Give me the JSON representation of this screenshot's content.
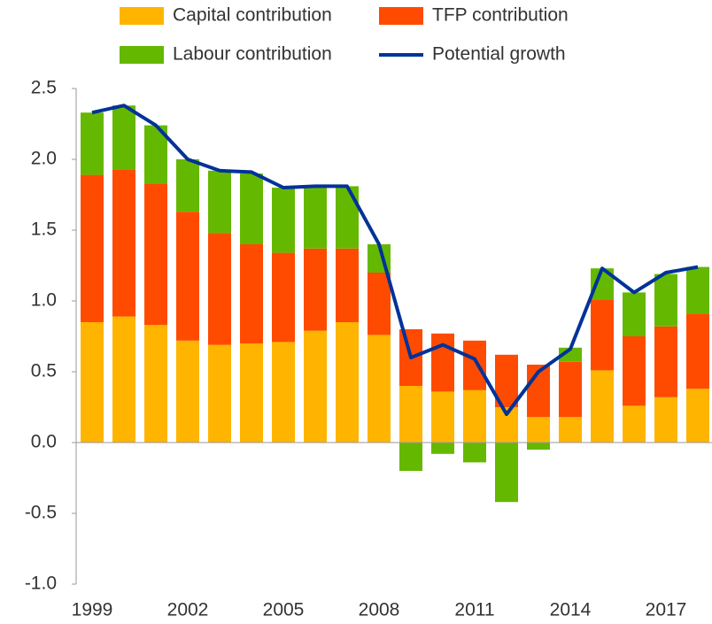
{
  "chart_data": {
    "type": "bar",
    "stacked": true,
    "categories": [
      "1999",
      null,
      null,
      "2002",
      null,
      null,
      "2005",
      null,
      null,
      "2008",
      null,
      null,
      "2011",
      null,
      null,
      "2014",
      null,
      null,
      "2017",
      null
    ],
    "series": [
      {
        "name": "Capital contribution",
        "color": "#FFB400",
        "type": "bar",
        "values": [
          0.85,
          0.89,
          0.83,
          0.72,
          0.69,
          0.7,
          0.71,
          0.79,
          0.85,
          0.76,
          0.4,
          0.36,
          0.37,
          0.25,
          0.18,
          0.18,
          0.51,
          0.26,
          0.32,
          0.38
        ]
      },
      {
        "name": "TFP contribution",
        "color": "#FF4B00",
        "type": "bar",
        "values": [
          1.04,
          1.04,
          1.0,
          0.91,
          0.79,
          0.7,
          0.63,
          0.58,
          0.52,
          0.44,
          0.4,
          0.41,
          0.35,
          0.37,
          0.37,
          0.39,
          0.5,
          0.49,
          0.5,
          0.53
        ]
      },
      {
        "name": "Labour contribution",
        "color": "#65B800",
        "type": "bar",
        "values": [
          0.44,
          0.45,
          0.41,
          0.37,
          0.44,
          0.5,
          0.46,
          0.43,
          0.44,
          0.2,
          -0.2,
          -0.08,
          -0.14,
          -0.42,
          -0.05,
          0.1,
          0.22,
          0.31,
          0.37,
          0.33
        ]
      },
      {
        "name": "Potential growth",
        "color": "#003299",
        "type": "line",
        "values": [
          2.33,
          2.38,
          2.24,
          2.0,
          1.92,
          1.91,
          1.8,
          1.81,
          1.81,
          1.4,
          0.6,
          0.69,
          0.59,
          0.2,
          0.5,
          0.66,
          1.23,
          1.06,
          1.2,
          1.24
        ]
      }
    ],
    "ylim": [
      -1,
      2.5
    ],
    "yticks": [
      {
        "value": -1,
        "label": "-1.0"
      },
      -0.5,
      {
        "value": 0,
        "label": "0.0"
      },
      0.5,
      {
        "value": 1,
        "label": "1.0"
      },
      1.5,
      {
        "value": 2,
        "label": "2.0"
      },
      2.5
    ],
    "grid": false,
    "legend": "top"
  }
}
